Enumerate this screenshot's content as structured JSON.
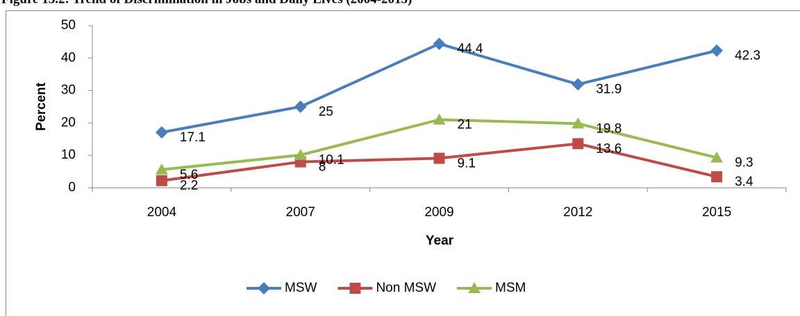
{
  "chart_data": {
    "type": "line",
    "title": "Figure 13.2: Trend of Discrimination in Jobs and Daily Lives (2004-2015)",
    "x_label": "Year",
    "y_label": "Percent",
    "categories": [
      "2004",
      "2007",
      "2009",
      "2012",
      "2015"
    ],
    "series": [
      {
        "name": "MSW",
        "color": "#4a7ebb",
        "marker": "diamond",
        "values": [
          17.1,
          25,
          44.4,
          31.9,
          42.3
        ]
      },
      {
        "name": "Non MSW",
        "color": "#be4b48",
        "marker": "square",
        "values": [
          2.2,
          8,
          9.1,
          13.6,
          3.4
        ]
      },
      {
        "name": "MSM",
        "color": "#98b954",
        "marker": "triangle",
        "values": [
          5.6,
          10.1,
          21,
          19.8,
          9.3
        ]
      }
    ],
    "ylim": [
      0,
      50
    ],
    "yticks": [
      0,
      10,
      20,
      30,
      40,
      50
    ],
    "legend": "bottom"
  }
}
